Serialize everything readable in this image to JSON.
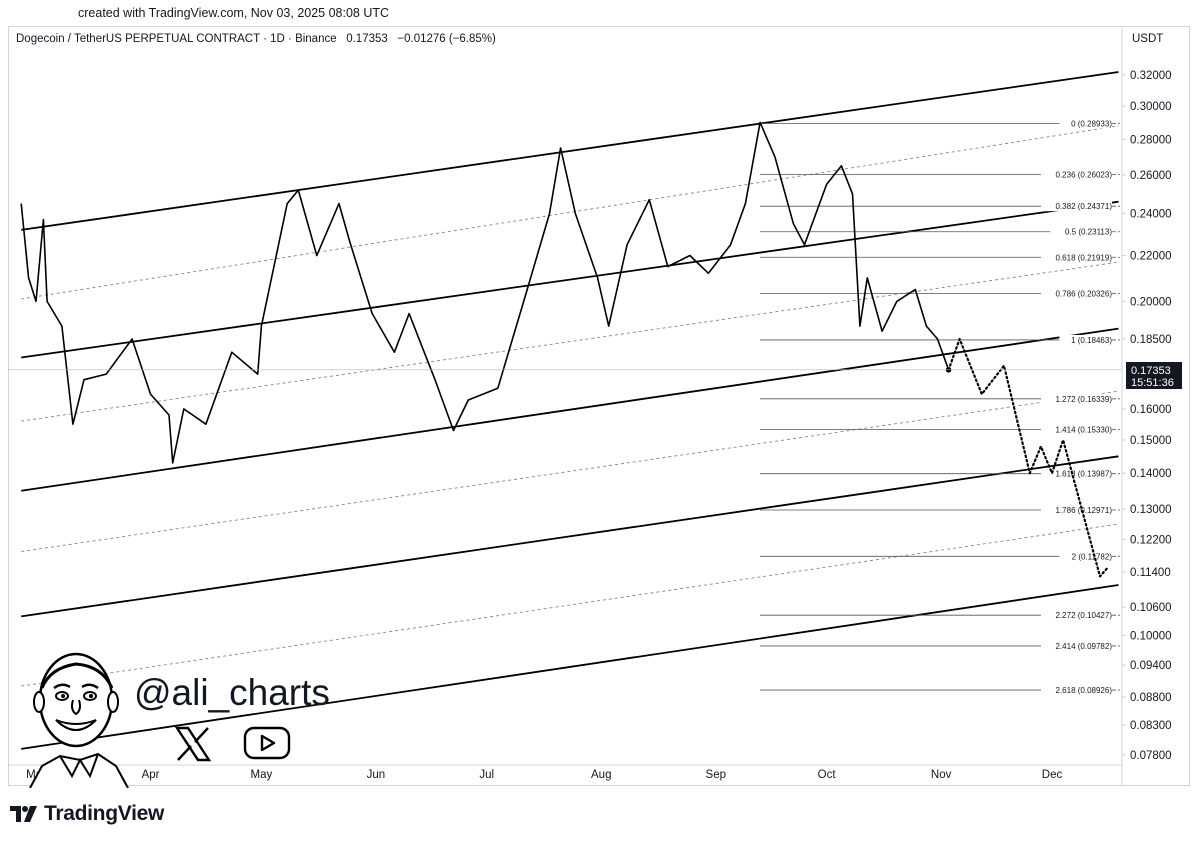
{
  "header": {
    "created_note": "created with TradingView.com, Nov 03, 2025 08:08 UTC",
    "symbol": "Dogecoin / TetherUS PERPETUAL CONTRACT · 1D · Binance",
    "price": "0.17353",
    "change": "−0.01276 (−6.85%)",
    "currency": "USDT"
  },
  "price_label": {
    "price": "0.17353",
    "countdown": "15:51:36"
  },
  "branding": {
    "handle": "@ali_charts",
    "logo_text": "TradingView"
  },
  "icons": [
    "x-logo-icon",
    "youtube-play-icon",
    "tradingview-logo-icon",
    "cartoon-avatar"
  ],
  "colors": {
    "line": "#000000",
    "fib": "#555555",
    "axis_text": "#131722",
    "border": "#d1d4dc"
  },
  "chart_data": {
    "type": "line",
    "scale": "log",
    "ylim": [
      0.075,
      0.33
    ],
    "y_ticks": [
      "0.32000",
      "0.30000",
      "0.28000",
      "0.26000",
      "0.24000",
      "0.22000",
      "0.20000",
      "0.18500",
      "0.16000",
      "0.15000",
      "0.14000",
      "0.13000",
      "0.12200",
      "0.11400",
      "0.10600",
      "0.10000",
      "0.09400",
      "0.08800",
      "0.08300",
      "0.07800"
    ],
    "x_ticks": [
      "Mar",
      "Apr",
      "May",
      "Jun",
      "Jul",
      "Aug",
      "Sep",
      "Oct",
      "Nov",
      "Dec"
    ],
    "series": [
      {
        "style": "solid",
        "points": [
          [
            "Feb 25",
            0.245
          ],
          [
            "Feb 27",
            0.21
          ],
          [
            "Mar 1",
            0.2
          ],
          [
            "Mar 3",
            0.237
          ],
          [
            "Mar 4",
            0.2
          ],
          [
            "Mar 8",
            0.19
          ],
          [
            "Mar 11",
            0.155
          ],
          [
            "Mar 14",
            0.17
          ],
          [
            "Mar 20",
            0.172
          ],
          [
            "Mar 27",
            0.185
          ],
          [
            "Apr 1",
            0.165
          ],
          [
            "Apr 6",
            0.158
          ],
          [
            "Apr 7",
            0.143
          ],
          [
            "Apr 10",
            0.16
          ],
          [
            "Apr 16",
            0.155
          ],
          [
            "Apr 23",
            0.18
          ],
          [
            "Apr 30",
            0.172
          ],
          [
            "May 1",
            0.19
          ],
          [
            "May 8",
            0.245
          ],
          [
            "May 11",
            0.252
          ],
          [
            "May 16",
            0.22
          ],
          [
            "May 22",
            0.245
          ],
          [
            "May 25",
            0.226
          ],
          [
            "May 31",
            0.195
          ],
          [
            "Jun 6",
            0.18
          ],
          [
            "Jun 10",
            0.195
          ],
          [
            "Jun 17",
            0.17
          ],
          [
            "Jun 22",
            0.153
          ],
          [
            "Jun 26",
            0.163
          ],
          [
            "Jul 4",
            0.167
          ],
          [
            "Jul 11",
            0.2
          ],
          [
            "Jul 18",
            0.24
          ],
          [
            "Jul 21",
            0.275
          ],
          [
            "Jul 25",
            0.24
          ],
          [
            "Jul 31",
            0.21
          ],
          [
            "Aug 3",
            0.19
          ],
          [
            "Aug 8",
            0.225
          ],
          [
            "Aug 14",
            0.247
          ],
          [
            "Aug 19",
            0.215
          ],
          [
            "Aug 25",
            0.22
          ],
          [
            "Aug 30",
            0.212
          ],
          [
            "Sep 5",
            0.225
          ],
          [
            "Sep 9",
            0.245
          ],
          [
            "Sep 13",
            0.29
          ],
          [
            "Sep 17",
            0.27
          ],
          [
            "Sep 22",
            0.235
          ],
          [
            "Sep 25",
            0.225
          ],
          [
            "Oct 1",
            0.255
          ],
          [
            "Oct 5",
            0.265
          ],
          [
            "Oct 8",
            0.25
          ],
          [
            "Oct 10",
            0.19
          ],
          [
            "Oct 12",
            0.21
          ],
          [
            "Oct 16",
            0.188
          ],
          [
            "Oct 20",
            0.2
          ],
          [
            "Oct 25",
            0.205
          ],
          [
            "Oct 28",
            0.19
          ],
          [
            "Oct 31",
            0.185
          ],
          [
            "Nov 3",
            0.17353
          ]
        ]
      },
      {
        "style": "dotted",
        "points": [
          [
            "Nov 3",
            0.17353
          ],
          [
            "Nov 6",
            0.185
          ],
          [
            "Nov 12",
            0.165
          ],
          [
            "Nov 18",
            0.175
          ],
          [
            "Nov 25",
            0.14
          ],
          [
            "Nov 28",
            0.148
          ],
          [
            "Dec 1",
            0.14
          ],
          [
            "Dec 4",
            0.15
          ],
          [
            "Dec 14",
            0.113
          ],
          [
            "Dec 16",
            0.115
          ]
        ]
      }
    ],
    "fib_levels": [
      {
        "ratio": "0",
        "price": "0.28933"
      },
      {
        "ratio": "0.236",
        "price": "0.26023"
      },
      {
        "ratio": "0.382",
        "price": "0.24371"
      },
      {
        "ratio": "0.5",
        "price": "0.23113"
      },
      {
        "ratio": "0.618",
        "price": "0.21919"
      },
      {
        "ratio": "0.786",
        "price": "0.20326"
      },
      {
        "ratio": "1",
        "price": "0.18463"
      },
      {
        "ratio": "1.272",
        "price": "0.16339"
      },
      {
        "ratio": "1.414",
        "price": "0.15330"
      },
      {
        "ratio": "1.618",
        "price": "0.13987"
      },
      {
        "ratio": "1.786",
        "price": "0.12971"
      },
      {
        "ratio": "2",
        "price": "0.11782"
      },
      {
        "ratio": "2.272",
        "price": "0.10427"
      },
      {
        "ratio": "2.414",
        "price": "0.09782"
      },
      {
        "ratio": "2.618",
        "price": "0.08926"
      }
    ],
    "channel_lines": [
      {
        "style": "solid",
        "from": [
          "Feb 25",
          0.232
        ],
        "to": [
          "Dec 19",
          0.322
        ]
      },
      {
        "style": "dashed",
        "from": [
          "Feb 25",
          0.201
        ],
        "to": [
          "Dec 19",
          0.288
        ]
      },
      {
        "style": "solid",
        "from": [
          "Feb 25",
          0.178
        ],
        "to": [
          "Dec 19",
          0.246
        ]
      },
      {
        "style": "dashed",
        "from": [
          "Feb 25",
          0.156
        ],
        "to": [
          "Dec 19",
          0.217
        ]
      },
      {
        "style": "solid",
        "from": [
          "Feb 25",
          0.135
        ],
        "to": [
          "Dec 19",
          0.189
        ]
      },
      {
        "style": "dashed",
        "from": [
          "Feb 25",
          0.119
        ],
        "to": [
          "Dec 19",
          0.166
        ]
      },
      {
        "style": "solid",
        "from": [
          "Feb 25",
          0.104
        ],
        "to": [
          "Dec 19",
          0.145
        ]
      },
      {
        "style": "dashed",
        "from": [
          "Feb 25",
          0.09
        ],
        "to": [
          "Dec 19",
          0.126
        ]
      },
      {
        "style": "solid",
        "from": [
          "Feb 25",
          0.079
        ],
        "to": [
          "Dec 19",
          0.111
        ]
      }
    ],
    "grid": false
  }
}
